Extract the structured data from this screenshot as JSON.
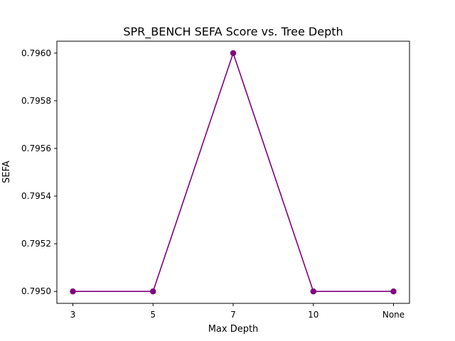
{
  "chart_data": {
    "type": "line",
    "title": "SPR_BENCH SEFA Score vs. Tree Depth",
    "xlabel": "Max Depth",
    "ylabel": "SEFA",
    "categories": [
      "3",
      "5",
      "7",
      "10",
      "None"
    ],
    "series": [
      {
        "values": [
          0.795,
          0.795,
          0.796,
          0.795,
          0.795
        ]
      }
    ],
    "ylim": [
      0.79495,
      0.79605
    ],
    "yticks": [
      "0.7950",
      "0.7952",
      "0.7954",
      "0.7956",
      "0.7958",
      "0.7960"
    ],
    "ytick_values": [
      0.795,
      0.7952,
      0.7954,
      0.7956,
      0.7958,
      0.796
    ],
    "grid": false,
    "line_color": "#800080"
  }
}
